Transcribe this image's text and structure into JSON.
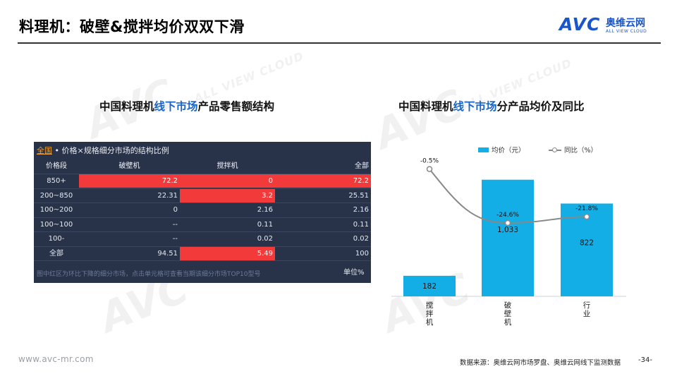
{
  "header": {
    "title": "料理机：破壁&搅拌均价双双下滑",
    "logo_mark": "AVC",
    "logo_cn": "奥维云网",
    "logo_en": "ALL VIEW CLOUD"
  },
  "left_section": {
    "title_pre": "中国料理机",
    "title_hl": "线下市场",
    "title_post": "产品零售额结构"
  },
  "right_section": {
    "title_pre": "中国料理机",
    "title_hl": "线下市场",
    "title_post": "分产品均价及同比"
  },
  "table": {
    "tab_all": "全国",
    "caption": " • 价格×规格细分市场的结构比例",
    "headers": [
      "价格段",
      "破壁机",
      "搅拌机",
      "全部"
    ],
    "rows": [
      {
        "cells": [
          "850+",
          "72.2",
          "0",
          "72.2"
        ],
        "red": [
          false,
          true,
          true,
          true
        ]
      },
      {
        "cells": [
          "200~850",
          "22.31",
          "3.2",
          "25.51"
        ],
        "red": [
          false,
          false,
          true,
          false
        ]
      },
      {
        "cells": [
          "100~200",
          "0",
          "2.16",
          "2.16"
        ],
        "red": [
          false,
          false,
          false,
          false
        ]
      },
      {
        "cells": [
          "100~100",
          "--",
          "0.11",
          "0.11"
        ],
        "red": [
          false,
          false,
          false,
          false
        ]
      },
      {
        "cells": [
          "100-",
          "--",
          "0.02",
          "0.02"
        ],
        "red": [
          false,
          false,
          false,
          false
        ]
      },
      {
        "cells": [
          "全部",
          "94.51",
          "5.49",
          "100"
        ],
        "red": [
          false,
          false,
          true,
          false
        ]
      }
    ],
    "note": "图中红区为环比下降的细分市场，点击单元格可查看当期该细分市场TOP10型号",
    "unit": "单位%",
    "colors": {
      "panel": "#28334a",
      "highlight": "#f23a3a"
    }
  },
  "chart_data": {
    "type": "bar",
    "categories": [
      "搅拌机",
      "破壁机",
      "行业"
    ],
    "series": [
      {
        "name": "均价（元）",
        "type": "bar",
        "values": [
          182,
          1033,
          822
        ],
        "labels": [
          "182",
          "1,033",
          "822"
        ],
        "color": "#14aee6"
      },
      {
        "name": "同比（%）",
        "type": "line",
        "values": [
          -0.5,
          -24.6,
          -21.8
        ],
        "labels": [
          "-0.5%",
          "-24.6%",
          "-21.8%"
        ],
        "color": "#888888"
      }
    ],
    "legend": "top",
    "grid": false
  },
  "footer": {
    "url": "www.avc-mr.com",
    "source": "数据来源：奥维云网市场罗盘、奥维云网线下监测数据",
    "page": "-34-"
  }
}
